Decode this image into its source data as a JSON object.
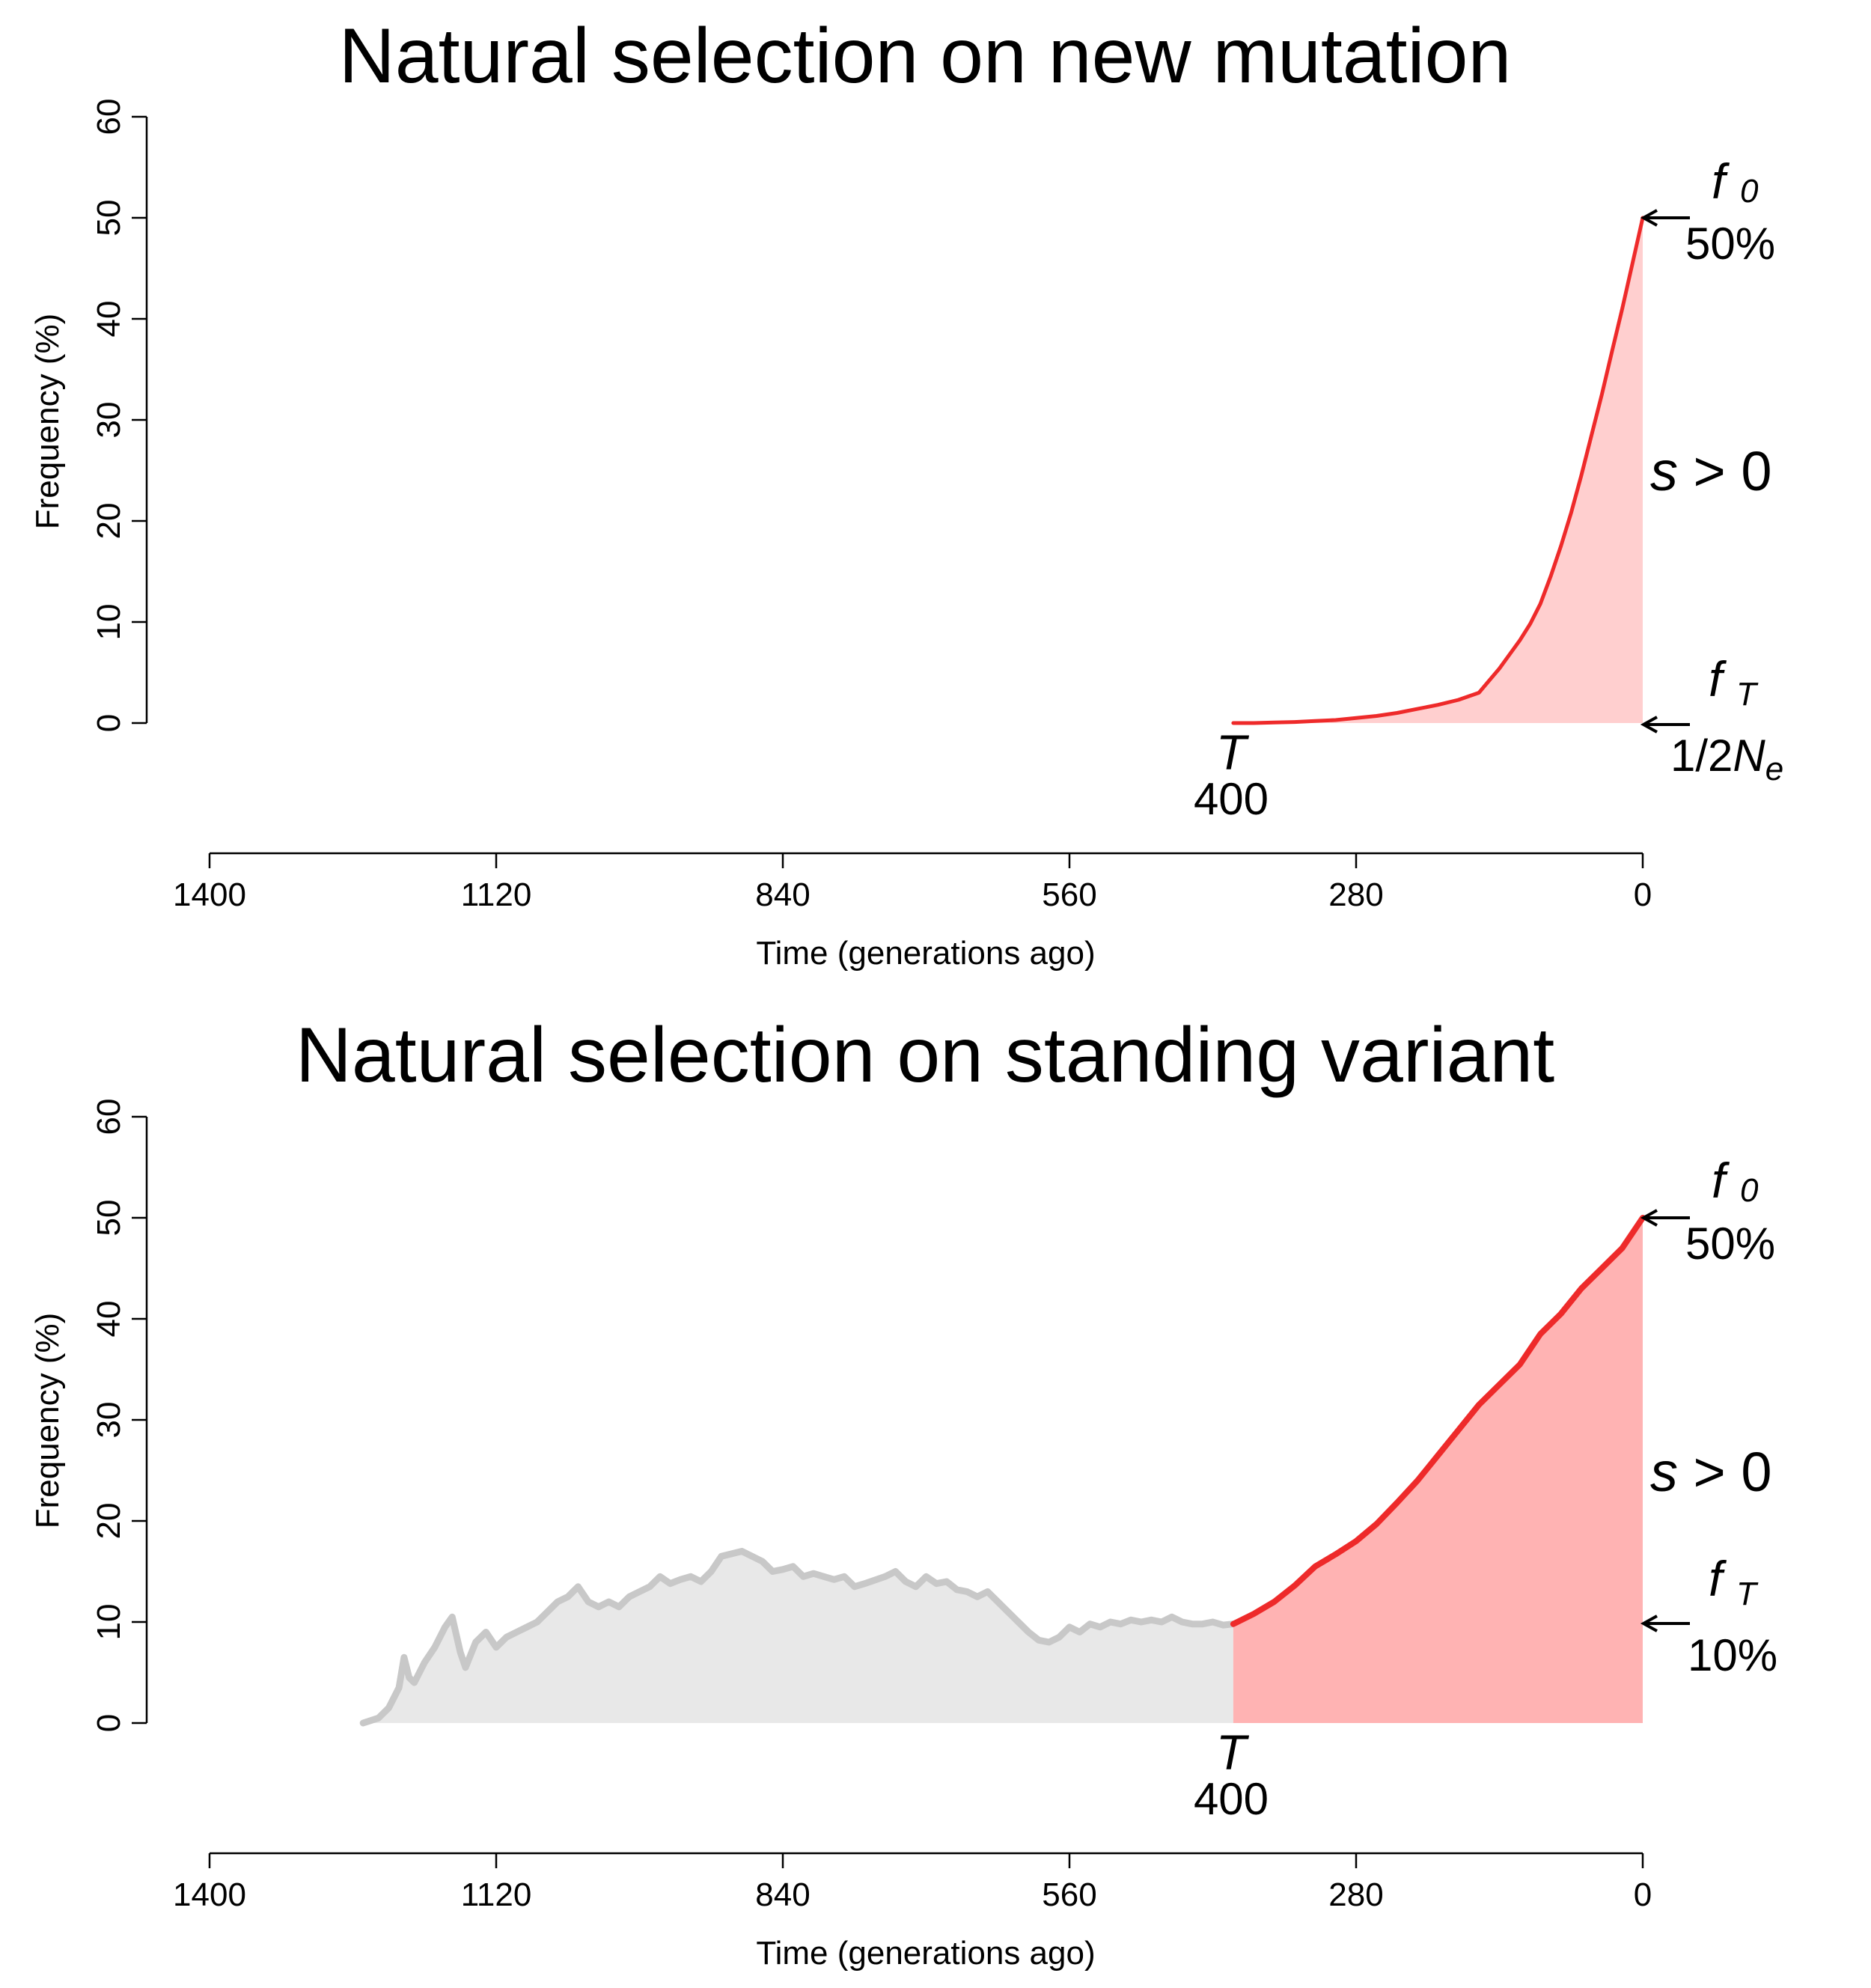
{
  "colors": {
    "selection_line": "#ee2a2a",
    "selection_fill_new": "#ffcfcf",
    "selection_fill_standing": "#ffb3b3",
    "drift_line": "#c8c8c8",
    "drift_fill": "#e8e8e8",
    "selection_text": "#ee0000"
  },
  "chart_data": [
    {
      "type": "area",
      "title": "Natural selection on new mutation",
      "xlabel": "Time (generations ago)",
      "ylabel": "Frequency (%)",
      "xlim": [
        1400,
        0
      ],
      "ylim": [
        0,
        60
      ],
      "x_ticks": [
        "1400",
        "1120",
        "840",
        "560",
        "280",
        "0"
      ],
      "y_ticks": [
        "0",
        "10",
        "20",
        "30",
        "40",
        "50",
        "60"
      ],
      "grid": false,
      "series": [
        {
          "phase": "selection",
          "x": [
            400,
            380,
            360,
            340,
            320,
            300,
            280,
            260,
            240,
            220,
            200,
            180,
            160,
            150,
            140,
            130,
            120,
            110,
            100,
            90,
            80,
            70,
            60,
            50,
            40,
            30,
            20,
            10,
            0
          ],
          "y": [
            0,
            0,
            0.05,
            0.1,
            0.2,
            0.3,
            0.5,
            0.7,
            1.0,
            1.4,
            1.8,
            2.3,
            3.0,
            4.2,
            5.4,
            6.8,
            8.2,
            9.8,
            11.8,
            14.5,
            17.5,
            20.8,
            24.5,
            28.5,
            32.5,
            36.8,
            41.0,
            45.5,
            50.0
          ]
        }
      ],
      "annotations": {
        "T_symbol": "T",
        "T_value": "400",
        "f0_symbol": "f",
        "f0_sub": "0",
        "f0_value": "50%",
        "fT_symbol": "f",
        "fT_sub": "T",
        "fT_value_prefix": "1/2",
        "fT_value_N": "N",
        "fT_value_sub": "e",
        "selection_symbol": "s",
        "selection_rest": " > 0"
      }
    },
    {
      "type": "area",
      "title": "Natural selection on standing variant",
      "xlabel": "Time (generations ago)",
      "ylabel": "Frequency (%)",
      "xlim": [
        1400,
        0
      ],
      "ylim": [
        0,
        60
      ],
      "x_ticks": [
        "1400",
        "1120",
        "840",
        "560",
        "280",
        "0"
      ],
      "y_ticks": [
        "0",
        "10",
        "20",
        "30",
        "40",
        "50",
        "60"
      ],
      "grid": false,
      "series": [
        {
          "phase": "drift",
          "x": [
            1250,
            1235,
            1225,
            1215,
            1210,
            1205,
            1200,
            1190,
            1180,
            1170,
            1163,
            1155,
            1150,
            1140,
            1130,
            1120,
            1110,
            1100,
            1090,
            1080,
            1060,
            1050,
            1040,
            1030,
            1020,
            1010,
            1000,
            990,
            980,
            970,
            960,
            950,
            940,
            930,
            920,
            910,
            900,
            880,
            860,
            850,
            840,
            830,
            820,
            810,
            800,
            790,
            780,
            770,
            760,
            740,
            730,
            720,
            710,
            700,
            690,
            680,
            670,
            660,
            650,
            640,
            630,
            620,
            610,
            600,
            590,
            580,
            570,
            560,
            550,
            540,
            530,
            520,
            510,
            500,
            490,
            480,
            470,
            460,
            450,
            440,
            430,
            420,
            410,
            400
          ],
          "y": [
            0,
            0.5,
            1.5,
            3.5,
            6.5,
            4.5,
            4.0,
            6.0,
            7.5,
            9.5,
            10.5,
            7.0,
            5.5,
            8.0,
            9.0,
            7.5,
            8.5,
            9.0,
            9.5,
            10.0,
            12.0,
            12.5,
            13.5,
            12.0,
            11.5,
            12.0,
            11.5,
            12.5,
            13.0,
            13.5,
            14.5,
            13.8,
            14.2,
            14.5,
            14.0,
            15.0,
            16.5,
            17.0,
            16.0,
            15.0,
            15.2,
            15.5,
            14.5,
            14.8,
            14.5,
            14.2,
            14.5,
            13.5,
            13.8,
            14.5,
            15.0,
            14.0,
            13.5,
            14.5,
            13.8,
            14.0,
            13.2,
            13.0,
            12.5,
            13.0,
            12.0,
            11.0,
            10.0,
            9.0,
            8.2,
            8.0,
            8.5,
            9.5,
            9.0,
            9.8,
            9.5,
            10.0,
            9.8,
            10.2,
            10.0,
            10.2,
            10.0,
            10.5,
            10.0,
            9.8,
            9.8,
            10.0,
            9.7,
            9.8
          ]
        },
        {
          "phase": "selection",
          "x": [
            400,
            380,
            360,
            340,
            320,
            300,
            280,
            260,
            240,
            220,
            200,
            180,
            160,
            140,
            120,
            100,
            80,
            60,
            40,
            20,
            0
          ],
          "y": [
            9.8,
            10.8,
            12.0,
            13.6,
            15.5,
            16.7,
            18.0,
            19.7,
            21.8,
            24.0,
            26.5,
            29.0,
            31.5,
            33.5,
            35.5,
            38.5,
            40.5,
            43.0,
            45.0,
            47.0,
            50.0
          ]
        }
      ],
      "annotations": {
        "T_symbol": "T",
        "T_value": "400",
        "f0_symbol": "f",
        "f0_sub": "0",
        "f0_value": "50%",
        "fT_symbol": "f",
        "fT_sub": "T",
        "fT_value": "10%",
        "selection_symbol": "s",
        "selection_rest": " > 0"
      }
    }
  ]
}
